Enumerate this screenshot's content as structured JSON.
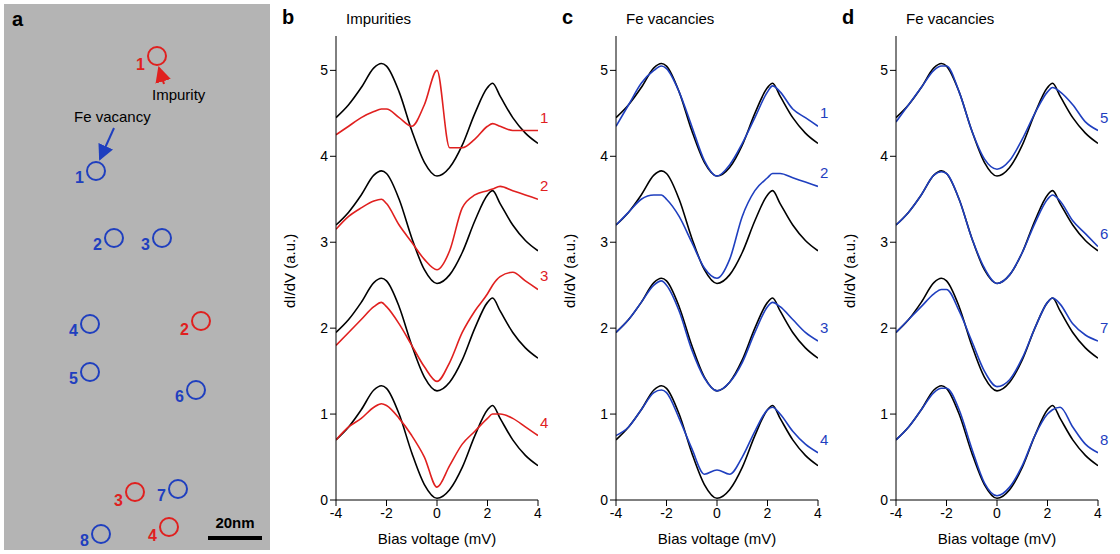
{
  "image_panel": {
    "panel_label": "a",
    "annotations": [
      "Impurity",
      "Fe vacancy"
    ],
    "impurities": {
      "color": "#e0201f",
      "labels": [
        "1",
        "2",
        "3",
        "4"
      ]
    },
    "vacancies": {
      "color": "#1f3fbf",
      "labels": [
        "1",
        "2",
        "3",
        "4",
        "5",
        "6",
        "7",
        "8"
      ]
    },
    "scale_bar": "20nm"
  },
  "chart_data": [
    {
      "type": "line",
      "panel_label": "b",
      "title": "Impurities",
      "x_label": "Bias voltage (mV)",
      "y_label": "dI/dV (a.u.)",
      "x": [
        -4,
        -3.5,
        -3,
        -2.5,
        -2.2,
        -2,
        -1.5,
        -1,
        -0.5,
        0,
        0.5,
        1,
        1.5,
        2,
        2.2,
        2.5,
        3,
        3.5,
        4
      ],
      "xlim": [
        -4,
        4
      ],
      "xticks": [
        -4,
        -2,
        0,
        2,
        4
      ],
      "ylim": [
        0,
        5.4
      ],
      "yticks": [
        0,
        1,
        2,
        3,
        4,
        5
      ],
      "series": [
        {
          "color": "#000000",
          "values": [
            4.45,
            4.6,
            4.8,
            5.03,
            5.08,
            5.05,
            4.75,
            4.3,
            3.93,
            3.77,
            3.87,
            4.13,
            4.5,
            4.8,
            4.85,
            4.7,
            4.45,
            4.27,
            4.15
          ]
        },
        {
          "name": "1",
          "color": "#e0201f",
          "values": [
            4.25,
            4.35,
            4.45,
            4.52,
            4.55,
            4.55,
            4.45,
            4.35,
            4.6,
            5.0,
            4.1,
            4.1,
            4.2,
            4.35,
            4.38,
            4.35,
            4.3,
            4.3,
            4.3
          ]
        },
        {
          "color": "#000000",
          "values": [
            3.2,
            3.35,
            3.55,
            3.78,
            3.83,
            3.8,
            3.5,
            3.05,
            2.68,
            2.52,
            2.62,
            2.88,
            3.25,
            3.55,
            3.6,
            3.45,
            3.2,
            3.02,
            2.9
          ]
        },
        {
          "name": "2",
          "color": "#e0201f",
          "values": [
            3.15,
            3.3,
            3.4,
            3.48,
            3.5,
            3.45,
            3.2,
            3.0,
            2.8,
            2.68,
            2.9,
            3.4,
            3.55,
            3.6,
            3.62,
            3.65,
            3.6,
            3.55,
            3.5
          ]
        },
        {
          "color": "#000000",
          "values": [
            1.95,
            2.1,
            2.3,
            2.53,
            2.58,
            2.55,
            2.25,
            1.8,
            1.43,
            1.27,
            1.37,
            1.63,
            2.0,
            2.3,
            2.35,
            2.2,
            1.95,
            1.77,
            1.65
          ]
        },
        {
          "name": "3",
          "color": "#e0201f",
          "values": [
            1.8,
            1.95,
            2.1,
            2.25,
            2.3,
            2.25,
            2.05,
            1.8,
            1.55,
            1.38,
            1.6,
            1.95,
            2.2,
            2.4,
            2.5,
            2.6,
            2.65,
            2.55,
            2.45
          ]
        },
        {
          "color": "#000000",
          "values": [
            0.7,
            0.85,
            1.05,
            1.28,
            1.33,
            1.3,
            1.0,
            0.55,
            0.18,
            0.02,
            0.12,
            0.38,
            0.75,
            1.05,
            1.1,
            0.95,
            0.7,
            0.52,
            0.4
          ]
        },
        {
          "name": "4",
          "color": "#e0201f",
          "values": [
            0.7,
            0.85,
            0.95,
            1.08,
            1.12,
            1.1,
            0.95,
            0.75,
            0.5,
            0.15,
            0.4,
            0.65,
            0.8,
            0.95,
            1.0,
            1.0,
            0.95,
            0.85,
            0.75
          ]
        }
      ]
    },
    {
      "type": "line",
      "panel_label": "c",
      "title": "Fe vacancies",
      "x_label": "Bias voltage (mV)",
      "y_label": "dI/dV (a.u.)",
      "x": [
        -4,
        -3.5,
        -3,
        -2.5,
        -2.2,
        -2,
        -1.5,
        -1,
        -0.5,
        0,
        0.5,
        1,
        1.5,
        2,
        2.2,
        2.5,
        3,
        3.5,
        4
      ],
      "xlim": [
        -4,
        4
      ],
      "xticks": [
        -4,
        -2,
        0,
        2,
        4
      ],
      "ylim": [
        0,
        5.4
      ],
      "yticks": [
        0,
        1,
        2,
        3,
        4,
        5
      ],
      "series": [
        {
          "color": "#000000",
          "values": [
            4.45,
            4.6,
            4.8,
            5.03,
            5.08,
            5.05,
            4.75,
            4.3,
            3.93,
            3.77,
            3.87,
            4.13,
            4.5,
            4.8,
            4.85,
            4.7,
            4.45,
            4.27,
            4.15
          ]
        },
        {
          "name": "1",
          "color": "#1f3fbf",
          "values": [
            4.35,
            4.6,
            4.85,
            5.0,
            5.05,
            5.02,
            4.75,
            4.35,
            3.95,
            3.77,
            3.9,
            4.15,
            4.45,
            4.75,
            4.82,
            4.75,
            4.55,
            4.45,
            4.35
          ]
        },
        {
          "color": "#000000",
          "values": [
            3.2,
            3.35,
            3.55,
            3.78,
            3.83,
            3.8,
            3.5,
            3.05,
            2.68,
            2.52,
            2.62,
            2.88,
            3.25,
            3.55,
            3.6,
            3.45,
            3.2,
            3.02,
            2.9
          ]
        },
        {
          "name": "2",
          "color": "#1f3fbf",
          "values": [
            3.2,
            3.35,
            3.5,
            3.55,
            3.55,
            3.5,
            3.3,
            3.0,
            2.7,
            2.58,
            2.8,
            3.3,
            3.6,
            3.75,
            3.8,
            3.8,
            3.75,
            3.7,
            3.65
          ]
        },
        {
          "color": "#000000",
          "values": [
            1.95,
            2.1,
            2.3,
            2.53,
            2.58,
            2.55,
            2.25,
            1.8,
            1.43,
            1.27,
            1.37,
            1.63,
            2.0,
            2.3,
            2.35,
            2.2,
            1.95,
            1.77,
            1.65
          ]
        },
        {
          "name": "3",
          "color": "#1f3fbf",
          "values": [
            1.95,
            2.1,
            2.3,
            2.5,
            2.55,
            2.5,
            2.2,
            1.75,
            1.42,
            1.27,
            1.37,
            1.6,
            1.95,
            2.25,
            2.3,
            2.25,
            2.1,
            1.95,
            1.85
          ]
        },
        {
          "color": "#000000",
          "values": [
            0.7,
            0.85,
            1.05,
            1.28,
            1.33,
            1.3,
            1.0,
            0.55,
            0.18,
            0.02,
            0.12,
            0.38,
            0.75,
            1.05,
            1.1,
            0.95,
            0.7,
            0.52,
            0.4
          ]
        },
        {
          "name": "4",
          "color": "#1f3fbf",
          "values": [
            0.75,
            0.85,
            1.05,
            1.25,
            1.28,
            1.25,
            0.95,
            0.6,
            0.3,
            0.35,
            0.3,
            0.5,
            0.8,
            1.05,
            1.08,
            1.0,
            0.8,
            0.65,
            0.55
          ]
        }
      ]
    },
    {
      "type": "line",
      "panel_label": "d",
      "title": "Fe vacancies",
      "x_label": "Bias voltage (mV)",
      "y_label": "dI/dV (a.u.)",
      "x": [
        -4,
        -3.5,
        -3,
        -2.5,
        -2.2,
        -2,
        -1.5,
        -1,
        -0.5,
        0,
        0.5,
        1,
        1.5,
        2,
        2.2,
        2.5,
        3,
        3.5,
        4
      ],
      "xlim": [
        -4,
        4
      ],
      "xticks": [
        -4,
        -2,
        0,
        2,
        4
      ],
      "ylim": [
        0,
        5.4
      ],
      "yticks": [
        0,
        1,
        2,
        3,
        4,
        5
      ],
      "series": [
        {
          "color": "#000000",
          "values": [
            4.45,
            4.6,
            4.8,
            5.03,
            5.08,
            5.05,
            4.75,
            4.3,
            3.93,
            3.77,
            3.87,
            4.13,
            4.5,
            4.8,
            4.85,
            4.7,
            4.45,
            4.27,
            4.15
          ]
        },
        {
          "name": "5",
          "color": "#1f3fbf",
          "values": [
            4.4,
            4.6,
            4.8,
            5.0,
            5.05,
            5.05,
            4.75,
            4.3,
            3.97,
            3.85,
            3.95,
            4.2,
            4.5,
            4.75,
            4.8,
            4.75,
            4.6,
            4.4,
            4.3
          ]
        },
        {
          "color": "#000000",
          "values": [
            3.2,
            3.35,
            3.55,
            3.78,
            3.83,
            3.8,
            3.5,
            3.05,
            2.68,
            2.52,
            2.62,
            2.88,
            3.25,
            3.55,
            3.6,
            3.45,
            3.2,
            3.02,
            2.9
          ]
        },
        {
          "name": "6",
          "color": "#1f3fbf",
          "values": [
            3.2,
            3.35,
            3.55,
            3.78,
            3.82,
            3.8,
            3.5,
            3.05,
            2.7,
            2.52,
            2.62,
            2.88,
            3.22,
            3.5,
            3.55,
            3.48,
            3.25,
            3.1,
            2.95
          ]
        },
        {
          "color": "#000000",
          "values": [
            1.95,
            2.1,
            2.3,
            2.53,
            2.58,
            2.55,
            2.25,
            1.8,
            1.43,
            1.27,
            1.37,
            1.63,
            2.0,
            2.3,
            2.35,
            2.2,
            1.95,
            1.77,
            1.65
          ]
        },
        {
          "name": "7",
          "color": "#1f3fbf",
          "values": [
            1.95,
            2.1,
            2.25,
            2.4,
            2.45,
            2.45,
            2.2,
            1.85,
            1.5,
            1.32,
            1.4,
            1.65,
            2.0,
            2.3,
            2.35,
            2.28,
            2.05,
            1.92,
            1.85
          ]
        },
        {
          "color": "#000000",
          "values": [
            0.7,
            0.85,
            1.05,
            1.28,
            1.33,
            1.3,
            1.0,
            0.55,
            0.18,
            0.02,
            0.12,
            0.38,
            0.75,
            1.05,
            1.1,
            0.95,
            0.7,
            0.52,
            0.4
          ]
        },
        {
          "name": "8",
          "color": "#1f3fbf",
          "values": [
            0.7,
            0.85,
            1.05,
            1.25,
            1.3,
            1.3,
            1.05,
            0.6,
            0.2,
            0.05,
            0.15,
            0.4,
            0.75,
            1.0,
            1.05,
            1.08,
            0.85,
            0.65,
            0.55
          ]
        }
      ]
    }
  ]
}
